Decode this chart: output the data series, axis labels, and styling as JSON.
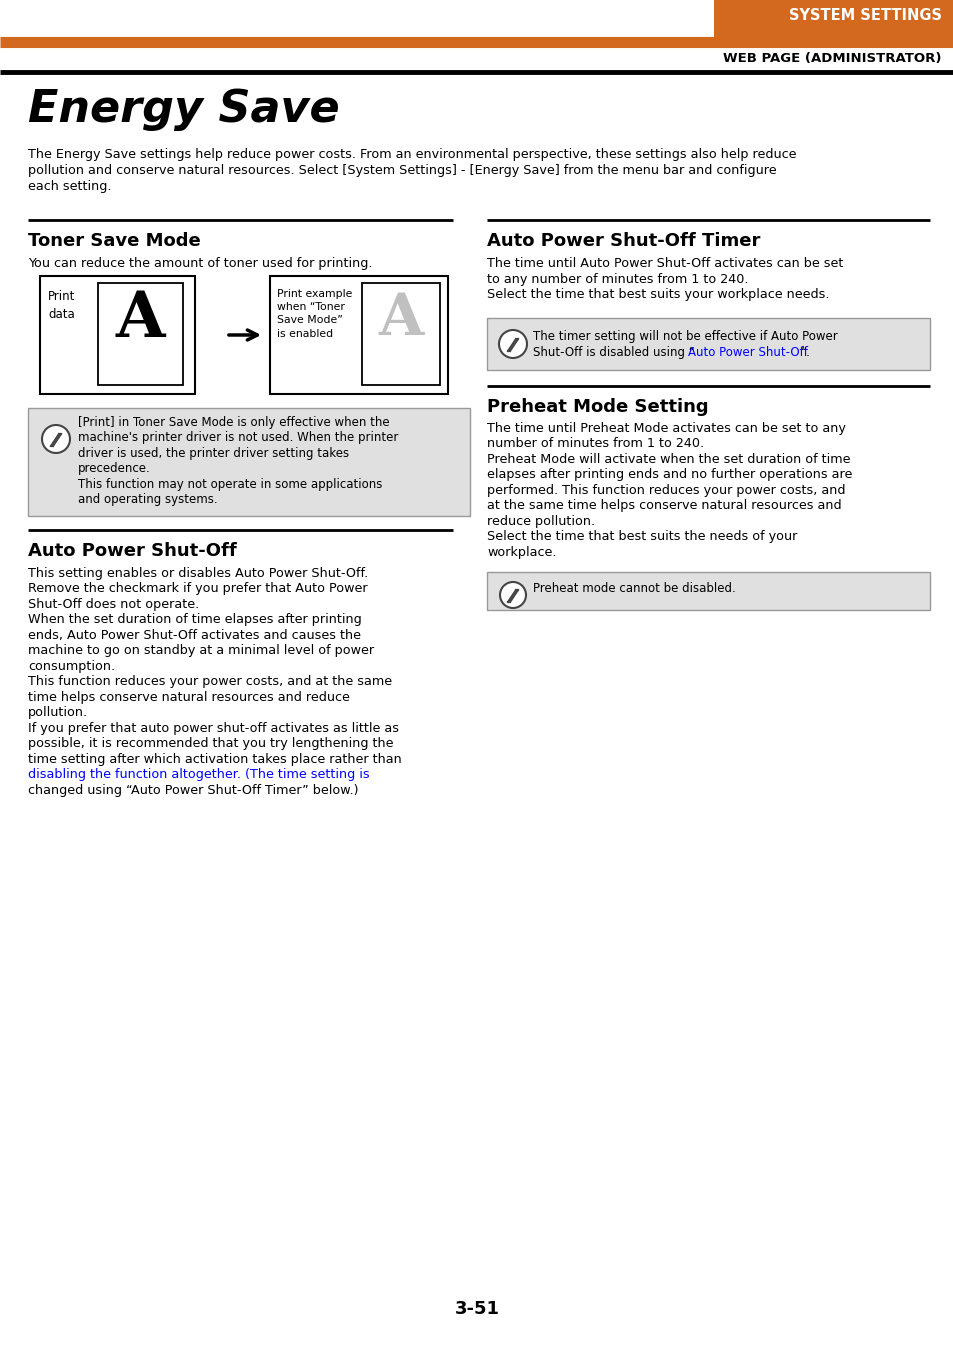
{
  "header_title": "SYSTEM SETTINGS",
  "header_sub": "WEB PAGE (ADMINISTRATOR)",
  "orange_color": "#D2691E",
  "page_title": "Energy Save",
  "page_intro": "The Energy Save settings help reduce power costs. From an environmental perspective, these settings also help reduce\npollution and conserve natural resources. Select [System Settings] - [Energy Save] from the menu bar and configure\neach setting.",
  "section1_title": "Toner Save Mode",
  "section1_sub": "You can reduce the amount of toner used for printing.",
  "section1_note_line1": "[Print] in Toner Save Mode is only effective when the",
  "section1_note_line2": "machine's printer driver is not used. When the printer",
  "section1_note_line3": "driver is used, the printer driver setting takes",
  "section1_note_line4": "precedence.",
  "section1_note_line5": "This function may not operate in some applications",
  "section1_note_line6": "and operating systems.",
  "section2_title": "Auto Power Shut-Off",
  "section2_body_lines": [
    "This setting enables or disables Auto Power Shut-Off.",
    "Remove the checkmark if you prefer that Auto Power",
    "Shut-Off does not operate.",
    "When the set duration of time elapses after printing",
    "ends, Auto Power Shut-Off activates and causes the",
    "machine to go on standby at a minimal level of power",
    "consumption.",
    "This function reduces your power costs, and at the same",
    "time helps conserve natural resources and reduce",
    "pollution.",
    "If you prefer that auto power shut-off activates as little as",
    "possible, it is recommended that you try lengthening the",
    "time setting after which activation takes place rather than",
    "disabling the function altogether. (The time setting is",
    "changed using “Auto Power Shut-Off Timer” below.)"
  ],
  "section2_link_line": 14,
  "section3_title": "Auto Power Shut-Off Timer",
  "section3_body_lines": [
    "The time until Auto Power Shut-Off activates can be set",
    "to any number of minutes from 1 to 240.",
    "Select the time that best suits your workplace needs."
  ],
  "section3_note_line1": "The timer setting will not be effective if Auto Power",
  "section3_note_line2": "Shut-Off is disabled using “",
  "section3_note_link": "Auto Power Shut-Off",
  "section3_note_end": "”.",
  "section4_title": "Preheat Mode Setting",
  "section4_body_lines": [
    "The time until Preheat Mode activates can be set to any",
    "number of minutes from 1 to 240.",
    "Preheat Mode will activate when the set duration of time",
    "elapses after printing ends and no further operations are",
    "performed. This function reduces your power costs, and",
    "at the same time helps conserve natural resources and",
    "reduce pollution.",
    "Select the time that best suits the needs of your",
    "workplace."
  ],
  "section4_note": "Preheat mode cannot be disabled.",
  "page_number": "3-51",
  "bg_color": "#ffffff",
  "text_color": "#000000",
  "note_bg": "#e0e0e0",
  "link_color": "#0000ff"
}
